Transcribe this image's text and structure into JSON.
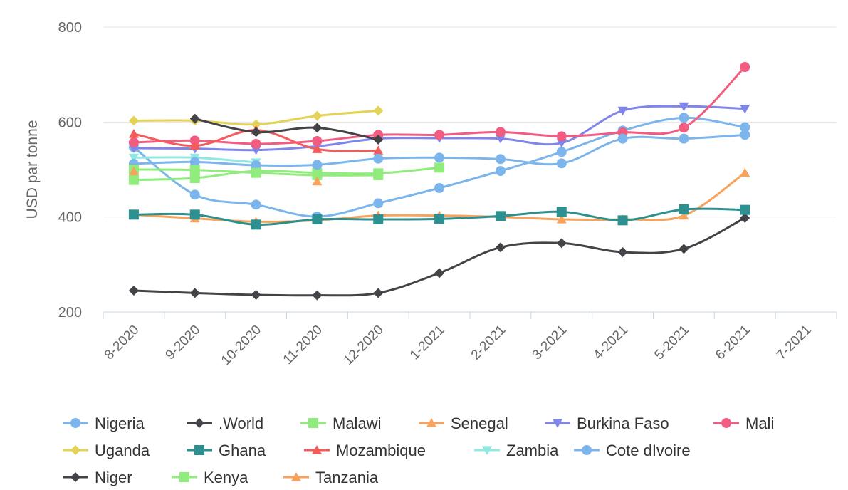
{
  "chart_data": {
    "type": "line",
    "title": "",
    "xlabel": "",
    "ylabel": "USD par tonne",
    "ylim": [
      200,
      800
    ],
    "y_ticks": [
      "200",
      "400",
      "600",
      "800"
    ],
    "categories": [
      "8-2020",
      "9-2020",
      "10-2020",
      "11-2020",
      "12-2020",
      "1-2021",
      "2-2021",
      "3-2021",
      "4-2021",
      "5-2021",
      "6-2021",
      "7-2021"
    ],
    "grid": true,
    "legend_position": "bottom",
    "series": [
      {
        "name": "Nigeria",
        "color": "#7cb5ec",
        "marker": "circle",
        "values": [
          547,
          447,
          426,
          401,
          429,
          461,
          497,
          537,
          582,
          609,
          589,
          null
        ]
      },
      {
        "name": ".World",
        "color": "#434348",
        "marker": "diamond",
        "values": [
          245,
          240,
          236,
          235,
          240,
          282,
          336,
          345,
          326,
          333,
          398,
          null
        ]
      },
      {
        "name": "Malawi",
        "color": "#90ed7d",
        "marker": "square",
        "values": [
          478,
          482,
          497,
          493,
          492,
          504,
          null,
          null,
          null,
          null,
          null,
          null
        ]
      },
      {
        "name": "Senegal",
        "color": "#f7a35c",
        "marker": "triangle",
        "values": [
          405,
          397,
          390,
          393,
          403,
          403,
          400,
          395,
          395,
          403,
          493,
          null
        ]
      },
      {
        "name": "Burkina Faso",
        "color": "#8085e9",
        "marker": "triangle-down",
        "values": [
          545,
          544,
          541,
          549,
          565,
          566,
          565,
          556,
          624,
          633,
          628,
          null
        ]
      },
      {
        "name": "Mali",
        "color": "#f15c80",
        "marker": "circle",
        "values": [
          557,
          561,
          554,
          560,
          573,
          573,
          579,
          570,
          578,
          588,
          716,
          null
        ]
      },
      {
        "name": "Uganda",
        "color": "#e4d354",
        "marker": "diamond",
        "values": [
          603,
          603,
          595,
          613,
          624,
          null,
          null,
          null,
          null,
          null,
          null,
          null
        ]
      },
      {
        "name": "Ghana",
        "color": "#2b908f",
        "marker": "square",
        "values": [
          405,
          405,
          384,
          395,
          395,
          396,
          402,
          411,
          393,
          416,
          415,
          null
        ]
      },
      {
        "name": "Mozambique",
        "color": "#f45b5b",
        "marker": "triangle",
        "values": [
          575,
          550,
          583,
          543,
          540,
          null,
          null,
          null,
          null,
          null,
          null,
          null
        ]
      },
      {
        "name": "Zambia",
        "color": "#91e8e1",
        "marker": "triangle-down",
        "values": [
          525,
          525,
          515,
          null,
          null,
          null,
          null,
          null,
          null,
          null,
          null,
          null
        ]
      },
      {
        "name": "Cote dIvoire",
        "color": "#7cb5ec",
        "marker": "circle",
        "values": [
          512,
          516,
          509,
          510,
          523,
          525,
          522,
          513,
          565,
          565,
          573,
          null
        ]
      },
      {
        "name": "Niger",
        "color": "#434348",
        "marker": "diamond",
        "values": [
          null,
          607,
          579,
          588,
          563,
          null,
          null,
          null,
          null,
          null,
          null,
          null
        ]
      },
      {
        "name": "Kenya",
        "color": "#90ed7d",
        "marker": "square",
        "values": [
          500,
          499,
          493,
          488,
          488,
          null,
          null,
          null,
          null,
          null,
          null,
          null
        ]
      },
      {
        "name": "Tanzania",
        "color": "#f7a35c",
        "marker": "triangle",
        "values": [
          496,
          null,
          null,
          475,
          null,
          null,
          null,
          null,
          null,
          null,
          null,
          null
        ]
      }
    ]
  }
}
